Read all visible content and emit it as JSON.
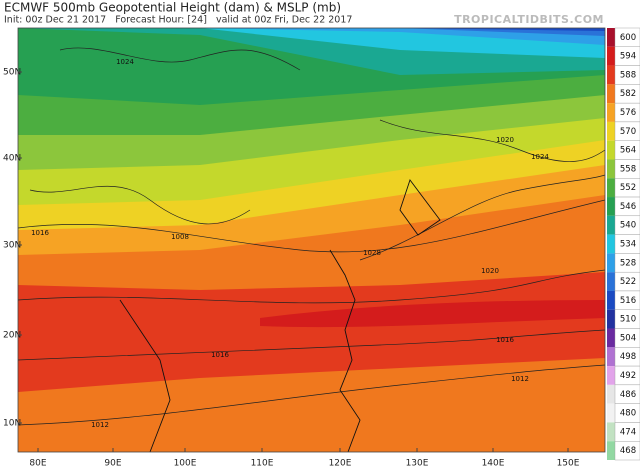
{
  "header": {
    "title": "ECMWF 500mb Geopotential Height (dam) & MSLP (mb)",
    "subtitle": "Init: 00z Dec 21 2017   Forecast Hour: [24]   valid at 00z Fri, Dec 22 2017",
    "watermark": "TROPICALTIDBITS.COM"
  },
  "map": {
    "lat_labels": [
      "50N",
      "40N",
      "30N",
      "20N",
      "10N"
    ],
    "lon_labels": [
      "80E",
      "90E",
      "100E",
      "110E",
      "120E",
      "130E",
      "140E",
      "150E"
    ],
    "isobar_labels": [
      "1024",
      "1020",
      "1024",
      "1016",
      "1008",
      "1028",
      "1020",
      "1016",
      "1012",
      "1016",
      "1012"
    ]
  },
  "colorbar": {
    "levels": [
      600,
      594,
      588,
      582,
      576,
      570,
      564,
      558,
      552,
      546,
      540,
      534,
      528,
      522,
      516,
      510,
      504,
      498,
      492,
      486,
      480,
      474,
      468
    ],
    "colors": [
      "#a8102c",
      "#d41c1c",
      "#e33a1e",
      "#f0781e",
      "#f6a324",
      "#eed224",
      "#c4d82c",
      "#8cc63c",
      "#4cae40",
      "#26a052",
      "#1aa892",
      "#22c6e0",
      "#2ea0e8",
      "#2a72d8",
      "#1a4ac2",
      "#2232a0",
      "#6a2aa0",
      "#b072d2",
      "#e2a4ea",
      "#e6e6e6",
      "#f2f2f2",
      "#c2e2c2",
      "#92d8a2"
    ]
  }
}
